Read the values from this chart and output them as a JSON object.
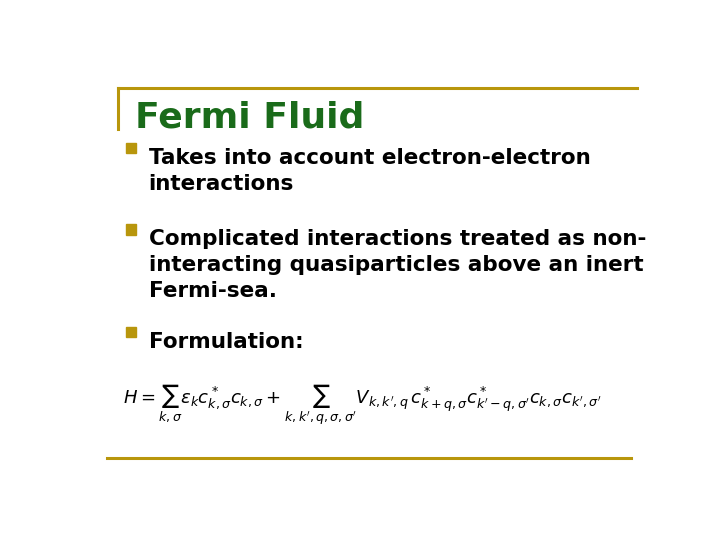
{
  "title": "Fermi Fluid",
  "title_color": "#1a6b1a",
  "title_fontsize": 26,
  "bullet_color": "#B8960C",
  "text_color": "#000000",
  "text_fontsize": 15.5,
  "formula_fontsize": 13,
  "border_color": "#B8960C",
  "background_color": "#ffffff",
  "bullet1_lines": [
    "Takes into account electron-electron",
    "interactions"
  ],
  "bullet2_lines": [
    "Complicated interactions treated as non-",
    "interacting quasiparticles above an inert",
    "Fermi-sea."
  ],
  "bullet3_lines": [
    "Formulation:"
  ],
  "formula": "$H = \\sum_{k,\\sigma} \\varepsilon_k c^*_{k,\\sigma} c_{k,\\sigma}  +  \\sum_{k,k',q,\\sigma,\\sigma'} V_{k,k',q}\\, c^*_{k+q,\\sigma} c^*_{k'-q,\\sigma'} c_{k,\\sigma} c_{k',\\sigma'}$"
}
